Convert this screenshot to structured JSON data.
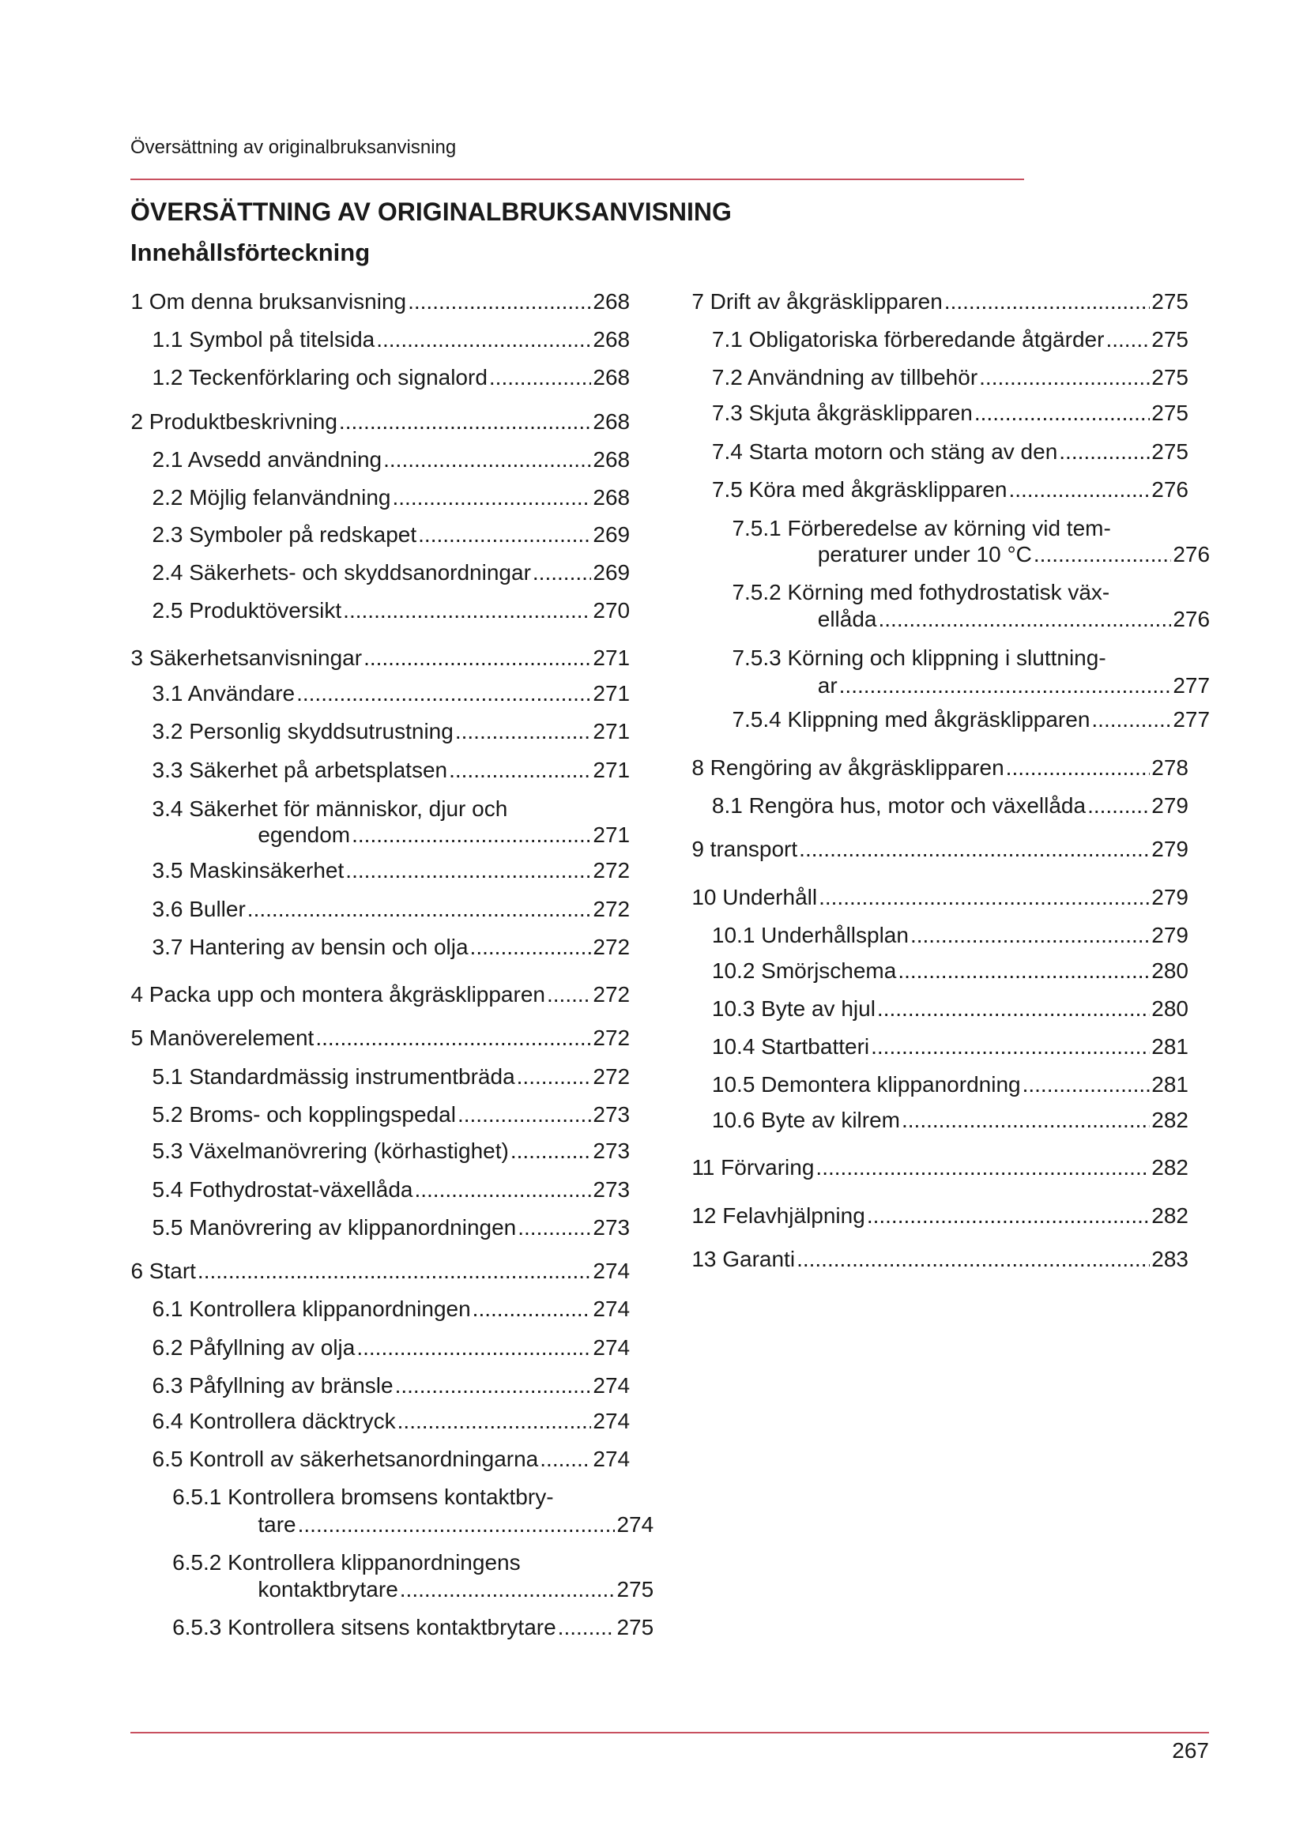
{
  "header": {
    "running_title": "Översättning av originalbruksanvisning"
  },
  "title": "ÖVERSÄTTNING AV ORIGINALBRUKSANVISNING",
  "subtitle": "Innehållsförteckning",
  "colors": {
    "rule": "#c8505f",
    "text": "#1a1a1a"
  },
  "toc_left": [
    {
      "level": 0,
      "text": "1 Om denna bruksanvisning",
      "page": "268"
    },
    {
      "level": 1,
      "text": "1.1 Symbol på titelsida",
      "page": "268"
    },
    {
      "level": 1,
      "text": "1.2 Teckenförklaring och signalord",
      "page": "268"
    },
    {
      "level": 0,
      "text": "2 Produktbeskrivning",
      "page": "268"
    },
    {
      "level": 1,
      "text": "2.1 Avsedd användning",
      "page": "268"
    },
    {
      "level": 1,
      "text": "2.2 Möjlig felanvändning",
      "page": "268"
    },
    {
      "level": 1,
      "text": "2.3 Symboler på redskapet",
      "page": "269"
    },
    {
      "level": 1,
      "text": "2.4 Säkerhets- och skyddsanordningar",
      "page": "269"
    },
    {
      "level": 1,
      "text": "2.5 Produktöversikt",
      "page": "270"
    },
    {
      "level": 0,
      "text": "3 Säkerhetsanvisningar",
      "page": "271"
    },
    {
      "level": 1,
      "text": "3.1 Användare",
      "page": "271"
    },
    {
      "level": 1,
      "text": "3.2 Personlig skyddsutrustning",
      "page": "271"
    },
    {
      "level": 1,
      "text": "3.3 Säkerhet på arbetsplatsen",
      "page": "271"
    },
    {
      "level": 1,
      "text": "3.4 Säkerhet för människor, djur och",
      "cont": "egendom",
      "page": "271"
    },
    {
      "level": 1,
      "text": "3.5 Maskinsäkerhet",
      "page": "272"
    },
    {
      "level": 1,
      "text": "3.6 Buller",
      "page": "272"
    },
    {
      "level": 1,
      "text": "3.7 Hantering av bensin och olja",
      "page": "272"
    },
    {
      "level": 0,
      "text": "4 Packa upp och montera åkgräsklipparen",
      "page": "272"
    },
    {
      "level": 0,
      "text": "5 Manöverelement",
      "page": "272"
    },
    {
      "level": 1,
      "text": "5.1 Standardmässig instrumentbräda",
      "page": "272"
    },
    {
      "level": 1,
      "text": "5.2 Broms- och kopplingspedal",
      "page": "273"
    },
    {
      "level": 1,
      "text": "5.3 Växelmanövrering (körhastighet)",
      "page": "273"
    },
    {
      "level": 1,
      "text": "5.4 Fothydrostat-växellåda",
      "page": "273"
    },
    {
      "level": 1,
      "text": "5.5 Manövrering av klippanordningen",
      "page": "273"
    },
    {
      "level": 0,
      "text": "6 Start",
      "page": "274"
    },
    {
      "level": 1,
      "text": "6.1 Kontrollera klippanordningen",
      "page": "274"
    },
    {
      "level": 1,
      "text": "6.2 Påfyllning av olja",
      "page": "274"
    },
    {
      "level": 1,
      "text": "6.3 Påfyllning av bränsle",
      "page": "274"
    },
    {
      "level": 1,
      "text": "6.4 Kontrollera däcktryck",
      "page": "274"
    },
    {
      "level": 1,
      "text": "6.5 Kontroll av säkerhetsanordningarna",
      "page": "274"
    },
    {
      "level": 2,
      "text": "6.5.1 Kontrollera bromsens kontaktbry-",
      "cont": "tare",
      "page": "274"
    },
    {
      "level": 2,
      "text": "6.5.2 Kontrollera klippanordningens",
      "cont": "kontaktbrytare",
      "page": "275"
    },
    {
      "level": 2,
      "text": "6.5.3 Kontrollera sitsens kontaktbrytare",
      "page": "275"
    }
  ],
  "toc_right": [
    {
      "level": 0,
      "text": "7 Drift av åkgräsklipparen",
      "page": "275"
    },
    {
      "level": 1,
      "text": "7.1 Obligatoriska förberedande åtgärder",
      "page": "275"
    },
    {
      "level": 1,
      "text": "7.2 Användning av tillbehör",
      "page": "275"
    },
    {
      "level": 1,
      "text": "7.3 Skjuta åkgräsklipparen",
      "page": "275"
    },
    {
      "level": 1,
      "text": "7.4 Starta motorn och stäng av den",
      "page": "275"
    },
    {
      "level": 1,
      "text": "7.5 Köra med åkgräsklipparen",
      "page": "276"
    },
    {
      "level": 2,
      "text": "7.5.1 Förberedelse av körning vid tem-",
      "cont": "peraturer under 10 °C",
      "page": "276"
    },
    {
      "level": 2,
      "text": "7.5.2 Körning med fothydrostatisk väx-",
      "cont": "ellåda",
      "page": "276"
    },
    {
      "level": 2,
      "text": "7.5.3 Körning och klippning i sluttning-",
      "cont": "ar",
      "page": "277"
    },
    {
      "level": 2,
      "text": "7.5.4 Klippning med åkgräsklipparen",
      "page": "277"
    },
    {
      "level": 0,
      "text": "8 Rengöring av åkgräsklipparen",
      "page": "278"
    },
    {
      "level": 1,
      "text": "8.1 Rengöra hus, motor och växellåda",
      "page": "279"
    },
    {
      "level": 0,
      "text": "9 transport",
      "page": "279"
    },
    {
      "level": 0,
      "text": "10 Underhåll",
      "page": "279"
    },
    {
      "level": 1,
      "text": "10.1 Underhållsplan",
      "page": "279"
    },
    {
      "level": 1,
      "text": "10.2 Smörjschema",
      "page": "280"
    },
    {
      "level": 1,
      "text": "10.3 Byte av hjul",
      "page": "280"
    },
    {
      "level": 1,
      "text": "10.4 Startbatteri",
      "page": "281"
    },
    {
      "level": 1,
      "text": "10.5 Demontera klippanordning",
      "page": "281"
    },
    {
      "level": 1,
      "text": "10.6 Byte av kilrem",
      "page": "282"
    },
    {
      "level": 0,
      "text": "11 Förvaring",
      "page": "282"
    },
    {
      "level": 0,
      "text": "12 Felavhjälpning",
      "page": "282"
    },
    {
      "level": 0,
      "text": "13 Garanti",
      "page": "283"
    }
  ],
  "footer": {
    "page_number": "267"
  }
}
